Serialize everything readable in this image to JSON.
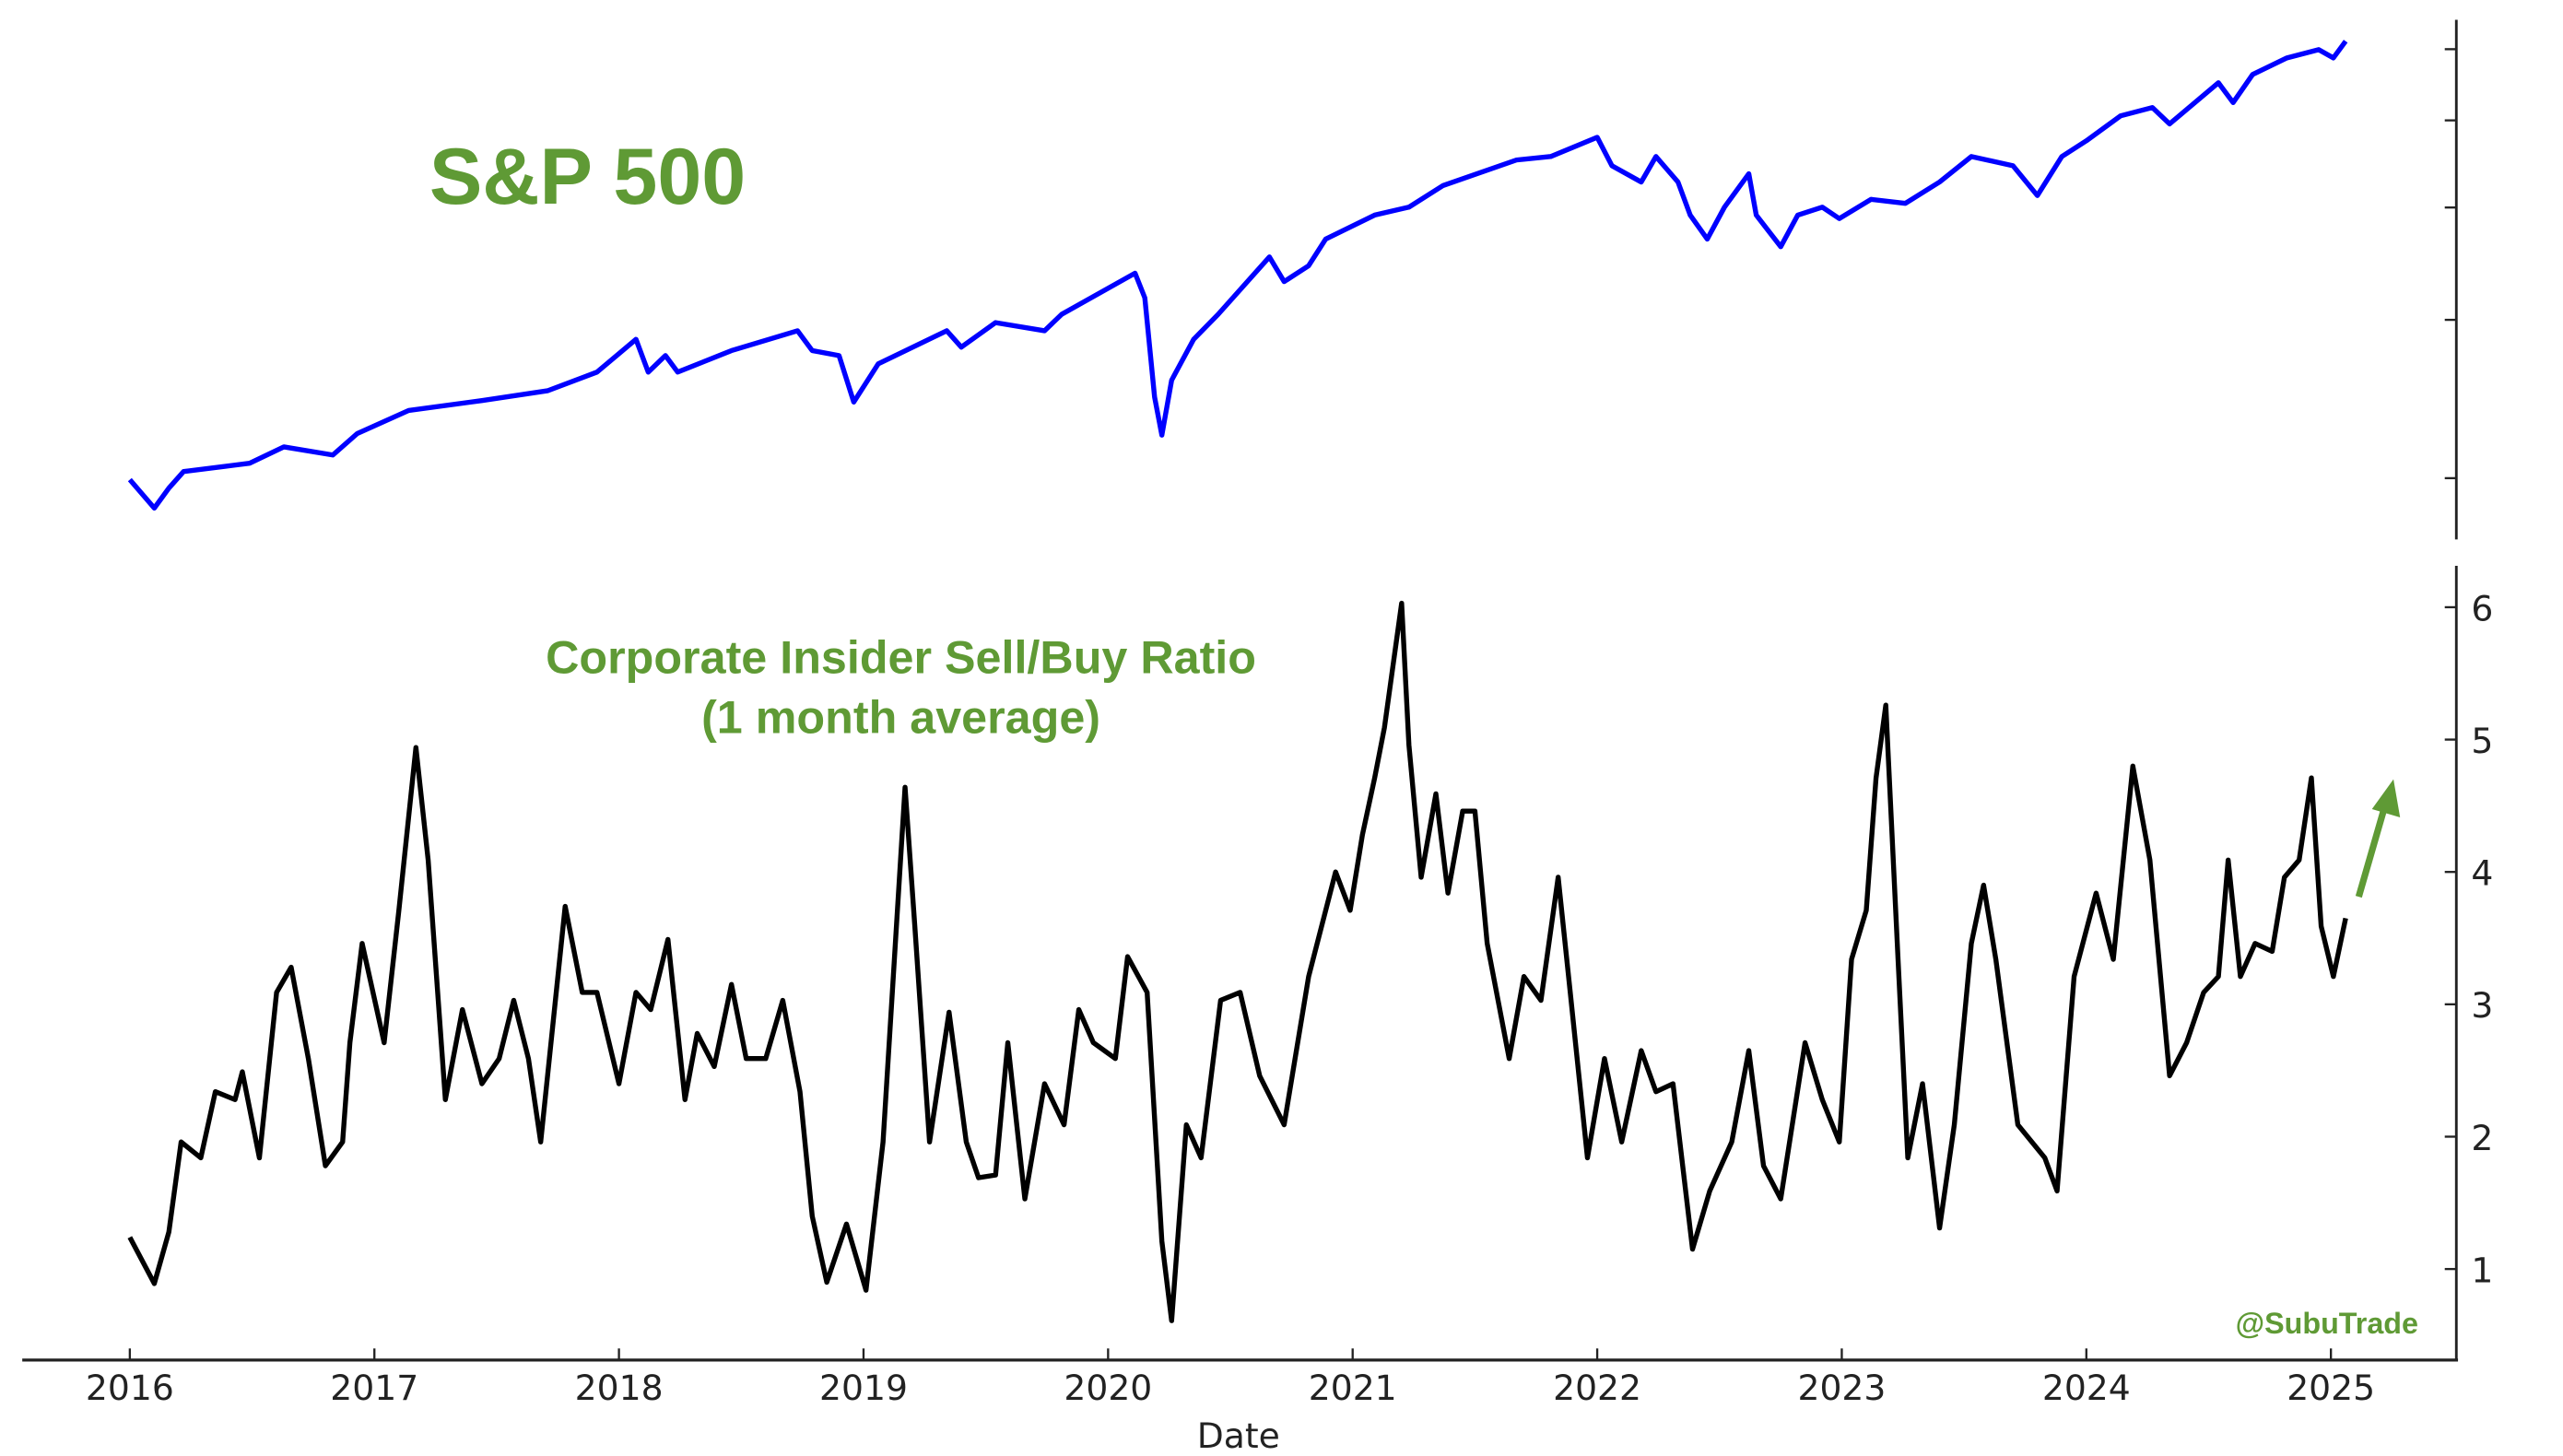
{
  "colors": {
    "sp500_line": "#0000ff",
    "ratio_line": "#000000",
    "annotation": "#5f9a35",
    "axis": "#222222"
  },
  "chart_data": [
    {
      "type": "line",
      "title": "S&P 500",
      "xlabel": "",
      "ylabel": "",
      "yscale": "log",
      "ylim": [
        1800,
        6300
      ],
      "yticks_unlabeled": [
        2000,
        3000,
        4000,
        5000,
        6000
      ],
      "series": [
        {
          "name": "S&P 500",
          "x": [
            2016.0,
            2016.1,
            2016.16,
            2016.22,
            2016.49,
            2016.63,
            2016.83,
            2016.93,
            2017.14,
            2017.44,
            2017.71,
            2017.91,
            2018.07,
            2018.12,
            2018.19,
            2018.24,
            2018.46,
            2018.73,
            2018.79,
            2018.9,
            2018.96,
            2019.06,
            2019.34,
            2019.4,
            2019.54,
            2019.74,
            2019.81,
            2020.11,
            2020.15,
            2020.19,
            2020.22,
            2020.26,
            2020.35,
            2020.45,
            2020.66,
            2020.72,
            2020.82,
            2020.89,
            2021.09,
            2021.23,
            2021.37,
            2021.67,
            2021.81,
            2022.0,
            2022.06,
            2022.18,
            2022.24,
            2022.33,
            2022.38,
            2022.45,
            2022.52,
            2022.62,
            2022.65,
            2022.75,
            2022.82,
            2022.92,
            2022.99,
            2023.12,
            2023.26,
            2023.4,
            2023.53,
            2023.7,
            2023.8,
            2023.9,
            2024.0,
            2024.14,
            2024.27,
            2024.34,
            2024.54,
            2024.6,
            2024.68,
            2024.82,
            2024.95,
            2025.01,
            2025.06
          ],
          "values": [
            1992,
            1852,
            1950,
            2034,
            2078,
            2167,
            2122,
            2242,
            2378,
            2440,
            2503,
            2624,
            2854,
            2624,
            2738,
            2624,
            2773,
            2918,
            2773,
            2738,
            2430,
            2680,
            2918,
            2797,
            2978,
            2918,
            3042,
            3381,
            3174,
            2462,
            2233,
            2570,
            2854,
            3042,
            3525,
            3308,
            3446,
            3690,
            3923,
            4004,
            4233,
            4518,
            4557,
            4788,
            4452,
            4270,
            4557,
            4270,
            3923,
            3690,
            4004,
            4361,
            3923,
            3618,
            3923,
            4004,
            3889,
            4085,
            4043,
            4270,
            4557,
            4452,
            4125,
            4557,
            4746,
            5059,
            5166,
            4954,
            5506,
            5234,
            5624,
            5867,
            5994,
            5867,
            6124
          ]
        }
      ]
    },
    {
      "type": "line",
      "title": "Corporate Insider Sell/Buy Ratio",
      "subtitle": "(1 month average)",
      "xlabel": "Date",
      "ylabel": "",
      "ylim": [
        0.3,
        6.3
      ],
      "yticks": [
        "1",
        "2",
        "3",
        "4",
        "5",
        "6"
      ],
      "xticks": [
        "2016",
        "2017",
        "2018",
        "2019",
        "2020",
        "2021",
        "2022",
        "2023",
        "2024",
        "2025"
      ],
      "xlim": [
        2015.56,
        2025.55
      ],
      "annotations": [
        "@SubuTrade"
      ],
      "series": [
        {
          "name": "Sell/Buy Ratio",
          "x": [
            2016.0,
            2016.1,
            2016.16,
            2016.21,
            2016.29,
            2016.35,
            2016.43,
            2016.46,
            2016.53,
            2016.6,
            2016.66,
            2016.73,
            2016.8,
            2016.87,
            2016.9,
            2016.95,
            2017.04,
            2017.1,
            2017.17,
            2017.22,
            2017.29,
            2017.36,
            2017.44,
            2017.51,
            2017.57,
            2017.63,
            2017.68,
            2017.78,
            2017.85,
            2017.91,
            2018.0,
            2018.07,
            2018.13,
            2018.2,
            2018.27,
            2018.32,
            2018.39,
            2018.46,
            2018.52,
            2018.6,
            2018.67,
            2018.74,
            2018.79,
            2018.85,
            2018.93,
            2019.01,
            2019.08,
            2019.17,
            2019.21,
            2019.27,
            2019.35,
            2019.42,
            2019.47,
            2019.54,
            2019.59,
            2019.66,
            2019.74,
            2019.82,
            2019.88,
            2019.94,
            2020.03,
            2020.08,
            2020.16,
            2020.22,
            2020.26,
            2020.32,
            2020.38,
            2020.46,
            2020.54,
            2020.62,
            2020.72,
            2020.82,
            2020.93,
            2020.99,
            2021.04,
            2021.09,
            2021.13,
            2021.2,
            2021.23,
            2021.28,
            2021.34,
            2021.39,
            2021.45,
            2021.5,
            2021.55,
            2021.64,
            2021.7,
            2021.77,
            2021.84,
            2021.89,
            2021.96,
            2022.03,
            2022.1,
            2022.18,
            2022.24,
            2022.31,
            2022.39,
            2022.46,
            2022.55,
            2022.62,
            2022.68,
            2022.75,
            2022.85,
            2022.92,
            2022.99,
            2023.04,
            2023.1,
            2023.14,
            2023.18,
            2023.23,
            2023.27,
            2023.33,
            2023.4,
            2023.46,
            2023.53,
            2023.58,
            2023.63,
            2023.72,
            2023.83,
            2023.88,
            2023.95,
            2024.04,
            2024.11,
            2024.19,
            2024.26,
            2024.34,
            2024.41,
            2024.48,
            2024.54,
            2024.58,
            2024.63,
            2024.69,
            2024.76,
            2024.81,
            2024.87,
            2024.92,
            2024.96,
            2025.01,
            2025.06
          ],
          "values": [
            1.24,
            0.89,
            1.28,
            1.96,
            1.84,
            2.34,
            2.28,
            2.49,
            1.84,
            3.09,
            3.28,
            2.59,
            1.78,
            1.96,
            2.71,
            3.46,
            2.71,
            3.71,
            4.94,
            4.09,
            2.28,
            2.96,
            2.4,
            2.59,
            3.03,
            2.59,
            1.96,
            3.74,
            3.09,
            3.09,
            2.4,
            3.09,
            2.96,
            3.49,
            2.28,
            2.78,
            2.53,
            3.15,
            2.59,
            2.59,
            3.03,
            2.34,
            1.4,
            0.9,
            1.34,
            0.84,
            1.96,
            4.64,
            3.59,
            1.96,
            2.94,
            1.96,
            1.69,
            1.71,
            2.71,
            1.53,
            2.4,
            2.09,
            2.96,
            2.71,
            2.59,
            3.36,
            3.09,
            1.21,
            0.61,
            2.09,
            1.84,
            3.03,
            3.09,
            2.46,
            2.09,
            3.21,
            4.0,
            3.71,
            4.28,
            4.71,
            5.09,
            6.03,
            4.96,
            3.96,
            4.59,
            3.84,
            4.46,
            4.46,
            3.46,
            2.59,
            3.21,
            3.03,
            3.96,
            3.09,
            1.84,
            2.59,
            1.96,
            2.65,
            2.34,
            2.4,
            1.15,
            1.59,
            1.96,
            2.65,
            1.78,
            1.53,
            2.71,
            2.28,
            1.96,
            3.34,
            3.71,
            4.71,
            5.26,
            3.34,
            1.84,
            2.4,
            1.31,
            2.09,
            3.46,
            3.9,
            3.34,
            2.09,
            1.84,
            1.59,
            3.21,
            3.84,
            3.34,
            4.8,
            4.09,
            2.46,
            2.71,
            3.09,
            3.21,
            4.09,
            3.21,
            3.46,
            3.4,
            3.96,
            4.09,
            4.71,
            3.59,
            3.21,
            3.65
          ]
        }
      ]
    }
  ]
}
